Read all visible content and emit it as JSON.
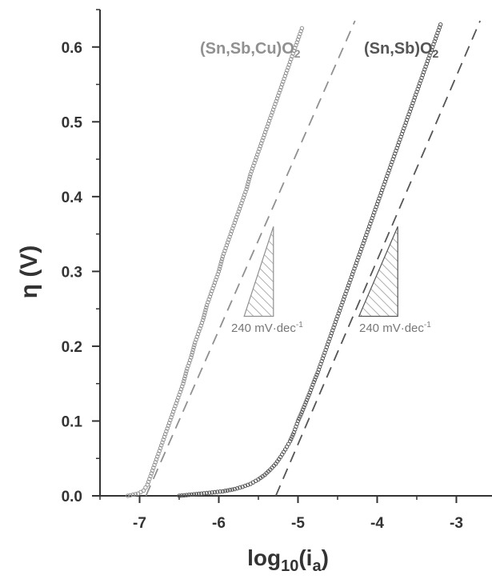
{
  "chart_data": {
    "type": "scatter",
    "xlabel_main": "log",
    "xlabel_sub": "10",
    "xlabel_paren": "(i",
    "xlabel_sub2": "a",
    "xlabel_close": ")",
    "ylabel": "η (V)",
    "xlim": [
      -7.5,
      -2.55
    ],
    "ylim": [
      0,
      0.65
    ],
    "xticks": [
      -7,
      -6,
      -5,
      -4,
      -3
    ],
    "xtick_labels": [
      "-7",
      "-6",
      "-5",
      "-4",
      "-3"
    ],
    "yticks": [
      0.0,
      0.1,
      0.2,
      0.3,
      0.4,
      0.5,
      0.6
    ],
    "ytick_labels": [
      "0.0",
      "0.1",
      "0.2",
      "0.3",
      "0.4",
      "0.5",
      "0.6"
    ],
    "grid": false,
    "legend": "none",
    "series": [
      {
        "name": "(Sn,Sb,Cu)O2",
        "label_main": "(Sn,Sb,Cu)O",
        "label_sub": "2",
        "color": "#909090",
        "points": [
          [
            -7.15,
            0.0
          ],
          [
            -7.02,
            0.003
          ],
          [
            -6.95,
            0.007
          ],
          [
            -6.9,
            0.015
          ],
          [
            -6.85,
            0.03
          ],
          [
            -6.8,
            0.045
          ],
          [
            -6.75,
            0.06
          ],
          [
            -6.7,
            0.075
          ],
          [
            -6.65,
            0.09
          ],
          [
            -6.6,
            0.105
          ],
          [
            -6.55,
            0.12
          ],
          [
            -6.5,
            0.135
          ],
          [
            -6.45,
            0.15
          ],
          [
            -6.4,
            0.17
          ],
          [
            -6.35,
            0.185
          ],
          [
            -6.3,
            0.205
          ],
          [
            -6.25,
            0.22
          ],
          [
            -6.2,
            0.235
          ],
          [
            -6.15,
            0.255
          ],
          [
            -6.1,
            0.27
          ],
          [
            -6.05,
            0.285
          ],
          [
            -6.0,
            0.3
          ],
          [
            -5.95,
            0.32
          ],
          [
            -5.9,
            0.335
          ],
          [
            -5.85,
            0.35
          ],
          [
            -5.8,
            0.365
          ],
          [
            -5.75,
            0.38
          ],
          [
            -5.7,
            0.395
          ],
          [
            -5.65,
            0.41
          ],
          [
            -5.6,
            0.43
          ],
          [
            -5.55,
            0.445
          ],
          [
            -5.5,
            0.46
          ],
          [
            -5.45,
            0.475
          ],
          [
            -5.4,
            0.49
          ],
          [
            -5.35,
            0.505
          ],
          [
            -5.3,
            0.52
          ],
          [
            -5.25,
            0.535
          ],
          [
            -5.2,
            0.55
          ],
          [
            -5.15,
            0.565
          ],
          [
            -5.1,
            0.58
          ],
          [
            -5.05,
            0.595
          ],
          [
            -5.0,
            0.61
          ],
          [
            -4.95,
            0.625
          ]
        ],
        "fit_line": [
          [
            -6.92,
            0.0
          ],
          [
            -4.28,
            0.635
          ]
        ]
      },
      {
        "name": "(Sn,Sb)O2",
        "label_main": "(Sn,Sb)O",
        "label_sub": "2",
        "color": "#555555",
        "points": [
          [
            -6.5,
            0.0
          ],
          [
            -6.22,
            0.003
          ],
          [
            -5.95,
            0.006
          ],
          [
            -5.8,
            0.009
          ],
          [
            -5.7,
            0.012
          ],
          [
            -5.6,
            0.016
          ],
          [
            -5.5,
            0.022
          ],
          [
            -5.42,
            0.028
          ],
          [
            -5.35,
            0.035
          ],
          [
            -5.28,
            0.043
          ],
          [
            -5.22,
            0.052
          ],
          [
            -5.16,
            0.062
          ],
          [
            -5.1,
            0.073
          ],
          [
            -5.05,
            0.085
          ],
          [
            -5.0,
            0.1
          ],
          [
            -4.95,
            0.112
          ],
          [
            -4.9,
            0.125
          ],
          [
            -4.85,
            0.138
          ],
          [
            -4.8,
            0.152
          ],
          [
            -4.75,
            0.165
          ],
          [
            -4.7,
            0.18
          ],
          [
            -4.65,
            0.195
          ],
          [
            -4.6,
            0.21
          ],
          [
            -4.55,
            0.225
          ],
          [
            -4.5,
            0.24
          ],
          [
            -4.45,
            0.255
          ],
          [
            -4.4,
            0.27
          ],
          [
            -4.35,
            0.285
          ],
          [
            -4.3,
            0.3
          ],
          [
            -4.25,
            0.315
          ],
          [
            -4.2,
            0.33
          ],
          [
            -4.15,
            0.345
          ],
          [
            -4.1,
            0.36
          ],
          [
            -4.05,
            0.375
          ],
          [
            -4.0,
            0.39
          ],
          [
            -3.95,
            0.405
          ],
          [
            -3.9,
            0.42
          ],
          [
            -3.85,
            0.435
          ],
          [
            -3.8,
            0.45
          ],
          [
            -3.75,
            0.465
          ],
          [
            -3.7,
            0.48
          ],
          [
            -3.65,
            0.495
          ],
          [
            -3.6,
            0.51
          ],
          [
            -3.55,
            0.525
          ],
          [
            -3.5,
            0.54
          ],
          [
            -3.45,
            0.555
          ],
          [
            -3.4,
            0.57
          ],
          [
            -3.35,
            0.585
          ],
          [
            -3.3,
            0.6
          ],
          [
            -3.25,
            0.615
          ],
          [
            -3.2,
            0.63
          ]
        ],
        "fit_line": [
          [
            -5.28,
            0.0
          ],
          [
            -2.7,
            0.635
          ]
        ]
      }
    ],
    "annotations": [
      {
        "text": "240 mV·dec",
        "sup": "-1",
        "color": "#909090",
        "triangle": [
          [
            -5.68,
            0.24
          ],
          [
            -5.31,
            0.24
          ],
          [
            -5.31,
            0.36
          ]
        ]
      },
      {
        "text": "240 mV·dec",
        "sup": "-1",
        "color": "#555555",
        "triangle": [
          [
            -4.23,
            0.24
          ],
          [
            -3.74,
            0.24
          ],
          [
            -3.74,
            0.36
          ]
        ]
      }
    ]
  }
}
